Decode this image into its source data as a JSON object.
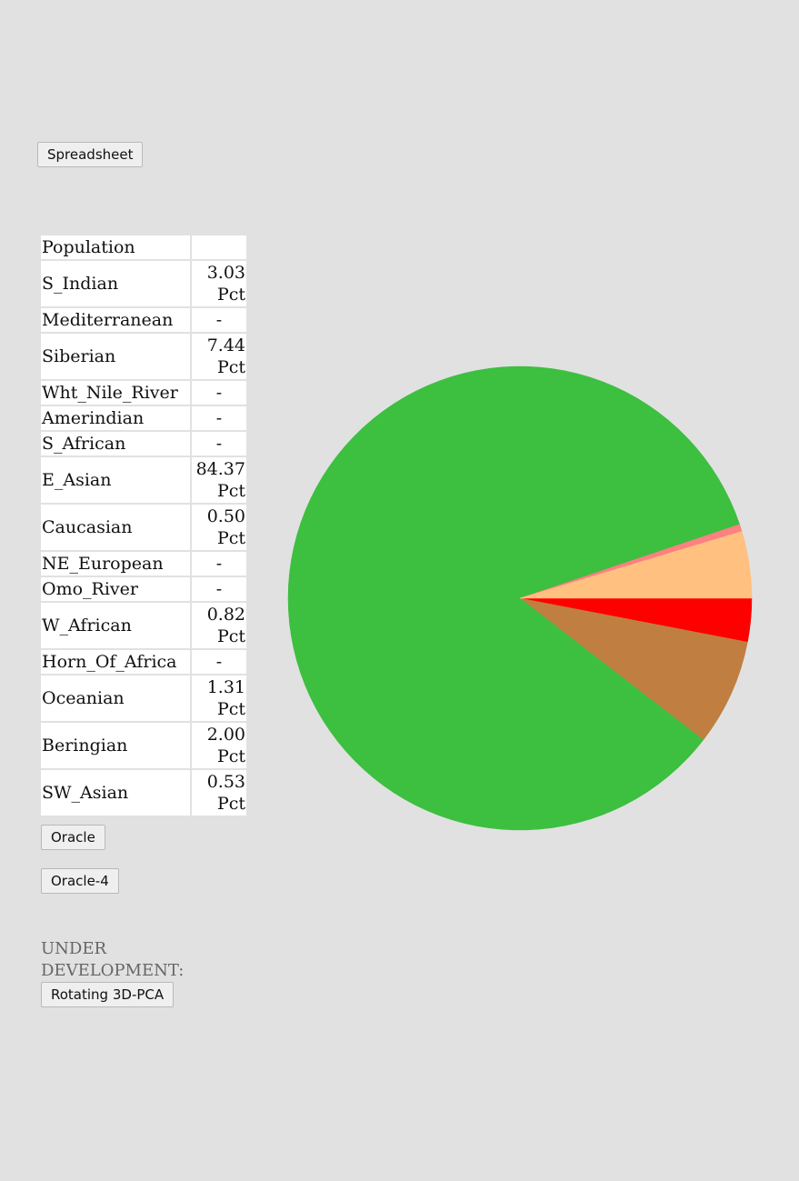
{
  "buttons": {
    "spreadsheet": "Spreadsheet",
    "oracle": "Oracle",
    "oracle4": "Oracle-4",
    "pca": "Rotating 3D-PCA"
  },
  "table": {
    "header": "Population",
    "header_value": "",
    "rows": [
      {
        "name": "S_Indian",
        "value": "3.03",
        "unit": "Pct"
      },
      {
        "name": "Mediterranean",
        "value": "-",
        "unit": ""
      },
      {
        "name": "Siberian",
        "value": "7.44",
        "unit": "Pct"
      },
      {
        "name": "Wht_Nile_River",
        "value": "-",
        "unit": ""
      },
      {
        "name": "Amerindian",
        "value": "-",
        "unit": ""
      },
      {
        "name": "S_African",
        "value": "-",
        "unit": ""
      },
      {
        "name": "E_Asian",
        "value": "84.37",
        "unit": "Pct"
      },
      {
        "name": "Caucasian",
        "value": "0.50",
        "unit": "Pct"
      },
      {
        "name": "NE_European",
        "value": "-",
        "unit": ""
      },
      {
        "name": "Omo_River",
        "value": "-",
        "unit": ""
      },
      {
        "name": "W_African",
        "value": "0.82",
        "unit": "Pct"
      },
      {
        "name": "Horn_Of_Africa",
        "value": "-",
        "unit": ""
      },
      {
        "name": "Oceanian",
        "value": "1.31",
        "unit": "Pct"
      },
      {
        "name": "Beringian",
        "value": "2.00",
        "unit": "Pct"
      },
      {
        "name": "SW_Asian",
        "value": "0.53",
        "unit": "Pct"
      }
    ]
  },
  "under_development_label": "UNDER DEVELOPMENT:",
  "chart_data": {
    "type": "pie",
    "title": "",
    "start_angle_deg": 0,
    "direction": "clockwise",
    "slices": [
      {
        "label": "S_Indian",
        "value": 3.03,
        "color": "#ff0000"
      },
      {
        "label": "Siberian",
        "value": 7.44,
        "color": "#c07f40"
      },
      {
        "label": "E_Asian",
        "value": 84.37,
        "color": "#3dbf40"
      },
      {
        "label": "Caucasian",
        "value": 0.5,
        "color": "#ff8080"
      },
      {
        "label": "W_African",
        "value": 0.82,
        "color": "#ffc080"
      },
      {
        "label": "Oceanian",
        "value": 1.31,
        "color": "#ffc080"
      },
      {
        "label": "Beringian",
        "value": 2.0,
        "color": "#ffc080"
      },
      {
        "label": "SW_Asian",
        "value": 0.53,
        "color": "#ffc080"
      }
    ]
  }
}
